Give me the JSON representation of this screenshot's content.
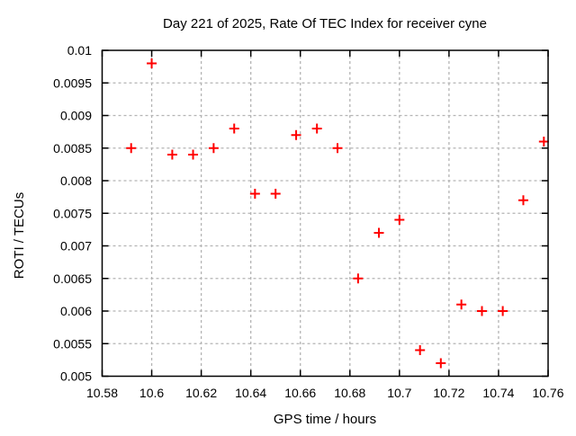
{
  "chart_data": {
    "type": "scatter",
    "title": "Day 221 of 2025, Rate Of TEC Index for receiver cyne",
    "xlabel": "GPS time / hours",
    "ylabel": "ROTI / TECUs",
    "xlim": [
      10.58,
      10.76
    ],
    "ylim": [
      0.005,
      0.01
    ],
    "xticks": {
      "values": [
        10.58,
        10.6,
        10.62,
        10.64,
        10.66,
        10.68,
        10.7,
        10.72,
        10.74,
        10.76
      ],
      "labels": [
        "10.58",
        "10.6",
        "10.62",
        "10.64",
        "10.66",
        "10.68",
        "10.7",
        "10.72",
        "10.74",
        "10.76"
      ]
    },
    "yticks": {
      "values": [
        0.005,
        0.0055,
        0.006,
        0.0065,
        0.007,
        0.0075,
        0.008,
        0.0085,
        0.009,
        0.0095,
        0.01
      ],
      "labels": [
        "0.005",
        "0.0055",
        "0.006",
        "0.0065",
        "0.007",
        "0.0075",
        "0.008",
        "0.0085",
        "0.009",
        "0.0095",
        "0.01"
      ]
    },
    "grid": true,
    "legend": "none",
    "marker": "plus",
    "marker_color": "#ff0000",
    "grid_color": "#b4b4b4",
    "border_color": "#000000",
    "series": [
      {
        "name": "ROTI",
        "x": [
          10.5917,
          10.6,
          10.6083,
          10.6167,
          10.625,
          10.6333,
          10.6417,
          10.65,
          10.6583,
          10.6667,
          10.675,
          10.6833,
          10.6917,
          10.7,
          10.7083,
          10.7167,
          10.725,
          10.7333,
          10.7417,
          10.75,
          10.7583
        ],
        "y": [
          0.0085,
          0.0098,
          0.0084,
          0.0084,
          0.0085,
          0.0088,
          0.0078,
          0.0078,
          0.0087,
          0.0088,
          0.0085,
          0.0065,
          0.0072,
          0.0074,
          0.0054,
          0.0052,
          0.0061,
          0.006,
          0.006,
          0.0077,
          0.0086
        ]
      }
    ]
  }
}
